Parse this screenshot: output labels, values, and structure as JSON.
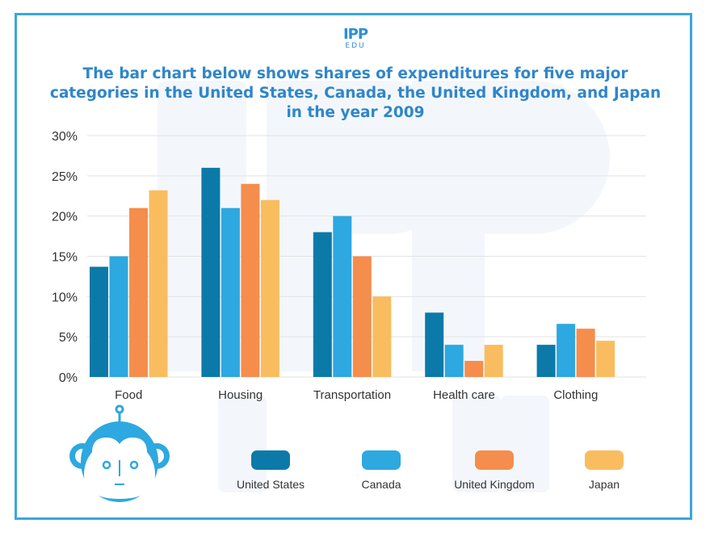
{
  "logo": {
    "main": "IPP",
    "sub": "EDU"
  },
  "title": "The bar chart below shows shares of expenditures for five major categories in the United States, Canada, the United Kingdom, and Japan in the year 2009",
  "colors": {
    "united_states": "#0b7aa8",
    "canada": "#2da8e0",
    "united_kingdom": "#f58d4c",
    "japan": "#f9bd5f",
    "border": "#3aa7dc",
    "title": "#2f86c9"
  },
  "chart_data": {
    "type": "bar",
    "title": "The bar chart below shows shares of expenditures for five major categories in the United States, Canada, the United Kingdom, and Japan in the year 2009",
    "xlabel": "",
    "ylabel": "",
    "categories": [
      "Food",
      "Housing",
      "Transportation",
      "Health care",
      "Clothing"
    ],
    "series": [
      {
        "name": "United States",
        "values": [
          13.7,
          26,
          18,
          8,
          4
        ]
      },
      {
        "name": "Canada",
        "values": [
          15,
          21,
          20,
          4,
          6.6
        ]
      },
      {
        "name": "United Kingdom",
        "values": [
          21,
          24,
          15,
          2,
          6
        ]
      },
      {
        "name": "Japan",
        "values": [
          23.2,
          22,
          10,
          4,
          4.5
        ]
      }
    ],
    "ylim": [
      0,
      30
    ],
    "yticks": [
      0,
      5,
      10,
      15,
      20,
      25,
      30
    ],
    "ytick_labels": [
      "0%",
      "5%",
      "10%",
      "15%",
      "20%",
      "25%",
      "30%"
    ],
    "grid": true,
    "legend_position": "bottom"
  }
}
